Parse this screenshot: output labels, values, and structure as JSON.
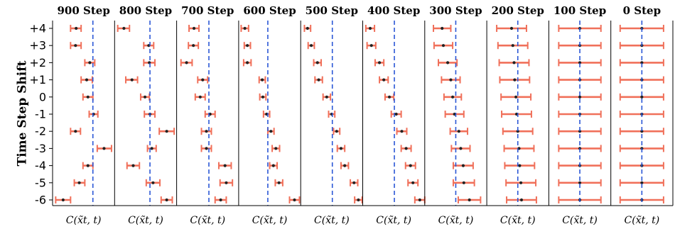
{
  "figure": {
    "ylabel": "Time Step Shift",
    "categories": [
      "+4",
      "+3",
      "+2",
      "+1",
      "0",
      "-1",
      "-2",
      "-3",
      "-4",
      "-5",
      "-6"
    ],
    "xlabel": "C(x̃t, t)"
  },
  "chart_data": [
    {
      "type": "scatter",
      "title": "900 Step",
      "xlabel": "C(x̃t, t)",
      "ylabel": "Time Step Shift",
      "categories": [
        "+4",
        "+3",
        "+2",
        "+1",
        "0",
        "-1",
        "-2",
        "-3",
        "-4",
        "-5",
        "-6"
      ],
      "reference_line": 0.65,
      "values": [
        0.38,
        0.37,
        0.6,
        0.55,
        0.57,
        0.66,
        0.37,
        0.83,
        0.57,
        0.43,
        0.17
      ],
      "err_low": [
        0.46,
        0.46,
        0.68,
        0.64,
        0.65,
        0.73,
        0.45,
        0.95,
        0.65,
        0.52,
        0.29
      ],
      "err_high": [
        0.29,
        0.29,
        0.52,
        0.46,
        0.49,
        0.59,
        0.29,
        0.72,
        0.49,
        0.35,
        0.05
      ],
      "xlim": [
        0,
        1
      ],
      "grid": false,
      "legend": "none"
    },
    {
      "type": "scatter",
      "title": "800 Step",
      "xlabel": "C(x̃t, t)",
      "ylabel": "",
      "categories": [
        "+4",
        "+3",
        "+2",
        "+1",
        "0",
        "-1",
        "-2",
        "-3",
        "-4",
        "-5",
        "-6"
      ],
      "reference_line": 0.57,
      "values": [
        0.15,
        0.55,
        0.56,
        0.28,
        0.49,
        0.57,
        0.84,
        0.6,
        0.3,
        0.62,
        0.84
      ],
      "err_low": [
        0.24,
        0.63,
        0.65,
        0.37,
        0.56,
        0.65,
        0.96,
        0.67,
        0.4,
        0.73,
        0.93
      ],
      "err_high": [
        0.05,
        0.47,
        0.47,
        0.18,
        0.42,
        0.48,
        0.72,
        0.53,
        0.2,
        0.51,
        0.75
      ],
      "xlim": [
        0,
        1
      ],
      "grid": false,
      "legend": "none"
    },
    {
      "type": "scatter",
      "title": "700 Step",
      "xlabel": "C(x̃t, t)",
      "ylabel": "",
      "categories": [
        "+4",
        "+3",
        "+2",
        "+1",
        "0",
        "-1",
        "-2",
        "-3",
        "-4",
        "-5",
        "-6"
      ],
      "reference_line": 0.52,
      "values": [
        0.28,
        0.27,
        0.16,
        0.42,
        0.38,
        0.54,
        0.48,
        0.48,
        0.78,
        0.8,
        0.71
      ],
      "err_low": [
        0.36,
        0.35,
        0.25,
        0.5,
        0.46,
        0.62,
        0.56,
        0.56,
        0.88,
        0.9,
        0.8
      ],
      "err_high": [
        0.2,
        0.19,
        0.07,
        0.34,
        0.3,
        0.46,
        0.4,
        0.4,
        0.68,
        0.7,
        0.62
      ],
      "xlim": [
        0,
        1
      ],
      "grid": false,
      "legend": "none"
    },
    {
      "type": "scatter",
      "title": "600 Step",
      "xlabel": "C(x̃t, t)",
      "ylabel": "",
      "categories": [
        "+4",
        "+3",
        "+2",
        "+1",
        "0",
        "-1",
        "-2",
        "-3",
        "-4",
        "-5",
        "-6"
      ],
      "reference_line": 0.47,
      "values": [
        0.1,
        0.14,
        0.14,
        0.38,
        0.39,
        0.45,
        0.52,
        0.6,
        0.56,
        0.65,
        0.9
      ],
      "err_low": [
        0.16,
        0.19,
        0.2,
        0.43,
        0.44,
        0.5,
        0.57,
        0.66,
        0.62,
        0.71,
        0.98
      ],
      "err_high": [
        0.04,
        0.09,
        0.08,
        0.33,
        0.34,
        0.4,
        0.47,
        0.54,
        0.5,
        0.59,
        0.82
      ],
      "xlim": [
        0,
        1
      ],
      "grid": false,
      "legend": "none"
    },
    {
      "type": "scatter",
      "title": "500 Step",
      "xlabel": "C(x̃t, t)",
      "ylabel": "",
      "categories": [
        "+4",
        "+3",
        "+2",
        "+1",
        "0",
        "-1",
        "-2",
        "-3",
        "-4",
        "-5",
        "-6"
      ],
      "reference_line": 0.51,
      "values": [
        0.11,
        0.17,
        0.27,
        0.29,
        0.42,
        0.5,
        0.58,
        0.65,
        0.71,
        0.86,
        0.93
      ],
      "err_low": [
        0.16,
        0.22,
        0.33,
        0.35,
        0.48,
        0.55,
        0.63,
        0.71,
        0.77,
        0.92,
        0.99
      ],
      "err_high": [
        0.06,
        0.12,
        0.21,
        0.23,
        0.36,
        0.45,
        0.53,
        0.59,
        0.65,
        0.8,
        0.87
      ],
      "xlim": [
        0,
        1
      ],
      "grid": false,
      "legend": "none"
    },
    {
      "type": "scatter",
      "title": "400 Step",
      "xlabel": "C(x̃t, t)",
      "ylabel": "",
      "categories": [
        "+4",
        "+3",
        "+2",
        "+1",
        "0",
        "-1",
        "-2",
        "-3",
        "-4",
        "-5",
        "-6"
      ],
      "reference_line": 0.51,
      "values": [
        0.12,
        0.14,
        0.27,
        0.34,
        0.43,
        0.54,
        0.63,
        0.7,
        0.77,
        0.81,
        0.92
      ],
      "err_low": [
        0.19,
        0.21,
        0.34,
        0.41,
        0.5,
        0.62,
        0.71,
        0.78,
        0.85,
        0.89,
        1.0
      ],
      "err_high": [
        0.05,
        0.07,
        0.2,
        0.27,
        0.36,
        0.46,
        0.55,
        0.62,
        0.69,
        0.73,
        0.84
      ],
      "xlim": [
        0,
        1
      ],
      "grid": false,
      "legend": "none"
    },
    {
      "type": "scatter",
      "title": "300 Step",
      "xlabel": "C(x̃t, t)",
      "ylabel": "",
      "categories": [
        "+4",
        "+3",
        "+2",
        "+1",
        "0",
        "-1",
        "-2",
        "-3",
        "-4",
        "-5",
        "-6"
      ],
      "reference_line": 0.5,
      "values": [
        0.28,
        0.3,
        0.37,
        0.42,
        0.45,
        0.48,
        0.55,
        0.58,
        0.62,
        0.63,
        0.72
      ],
      "err_low": [
        0.42,
        0.45,
        0.52,
        0.57,
        0.59,
        0.63,
        0.69,
        0.73,
        0.78,
        0.8,
        0.9
      ],
      "err_high": [
        0.14,
        0.15,
        0.22,
        0.27,
        0.31,
        0.33,
        0.41,
        0.43,
        0.46,
        0.46,
        0.54
      ],
      "xlim": [
        0,
        1
      ],
      "grid": false,
      "legend": "none"
    },
    {
      "type": "scatter",
      "title": "200 Step",
      "xlabel": "C(x̃t, t)",
      "ylabel": "",
      "categories": [
        "+4",
        "+3",
        "+2",
        "+1",
        "0",
        "-1",
        "-2",
        "-3",
        "-4",
        "-5",
        "-6"
      ],
      "reference_line": 0.5,
      "values": [
        0.4,
        0.42,
        0.44,
        0.45,
        0.47,
        0.48,
        0.5,
        0.52,
        0.53,
        0.55,
        0.56
      ],
      "err_low": [
        0.64,
        0.66,
        0.68,
        0.69,
        0.71,
        0.72,
        0.74,
        0.76,
        0.77,
        0.79,
        0.8
      ],
      "err_high": [
        0.16,
        0.18,
        0.2,
        0.21,
        0.23,
        0.24,
        0.26,
        0.28,
        0.29,
        0.31,
        0.32
      ],
      "xlim": [
        0,
        1
      ],
      "grid": false,
      "legend": "none"
    },
    {
      "type": "scatter",
      "title": "100 Step",
      "xlabel": "C(x̃t, t)",
      "ylabel": "",
      "categories": [
        "+4",
        "+3",
        "+2",
        "+1",
        "0",
        "-1",
        "-2",
        "-3",
        "-4",
        "-5",
        "-6"
      ],
      "reference_line": 0.5,
      "values": [
        0.5,
        0.5,
        0.5,
        0.5,
        0.5,
        0.5,
        0.5,
        0.5,
        0.5,
        0.5,
        0.5
      ],
      "err_low": [
        0.84,
        0.84,
        0.84,
        0.84,
        0.84,
        0.84,
        0.84,
        0.84,
        0.84,
        0.84,
        0.84
      ],
      "err_high": [
        0.16,
        0.16,
        0.16,
        0.16,
        0.16,
        0.16,
        0.16,
        0.16,
        0.16,
        0.16,
        0.16
      ],
      "xlim": [
        0,
        1
      ],
      "grid": false,
      "legend": "none"
    },
    {
      "type": "scatter",
      "title": "0 Step",
      "xlabel": "C(x̃t, t)",
      "ylabel": "",
      "categories": [
        "+4",
        "+3",
        "+2",
        "+1",
        "0",
        "-1",
        "-2",
        "-3",
        "-4",
        "-5",
        "-6"
      ],
      "reference_line": 0.5,
      "values": [
        0.5,
        0.5,
        0.5,
        0.5,
        0.5,
        0.5,
        0.5,
        0.5,
        0.5,
        0.5,
        0.5
      ],
      "err_low": [
        0.85,
        0.85,
        0.85,
        0.85,
        0.85,
        0.85,
        0.85,
        0.85,
        0.85,
        0.85,
        0.85
      ],
      "err_high": [
        0.15,
        0.15,
        0.15,
        0.15,
        0.15,
        0.15,
        0.15,
        0.15,
        0.15,
        0.15,
        0.15
      ],
      "xlim": [
        0,
        1
      ],
      "grid": false,
      "legend": "none"
    }
  ],
  "colors": {
    "errorbar": "#f0705a",
    "point": "#222222",
    "reference_line": "#2b57d6",
    "axis": "#000000"
  }
}
